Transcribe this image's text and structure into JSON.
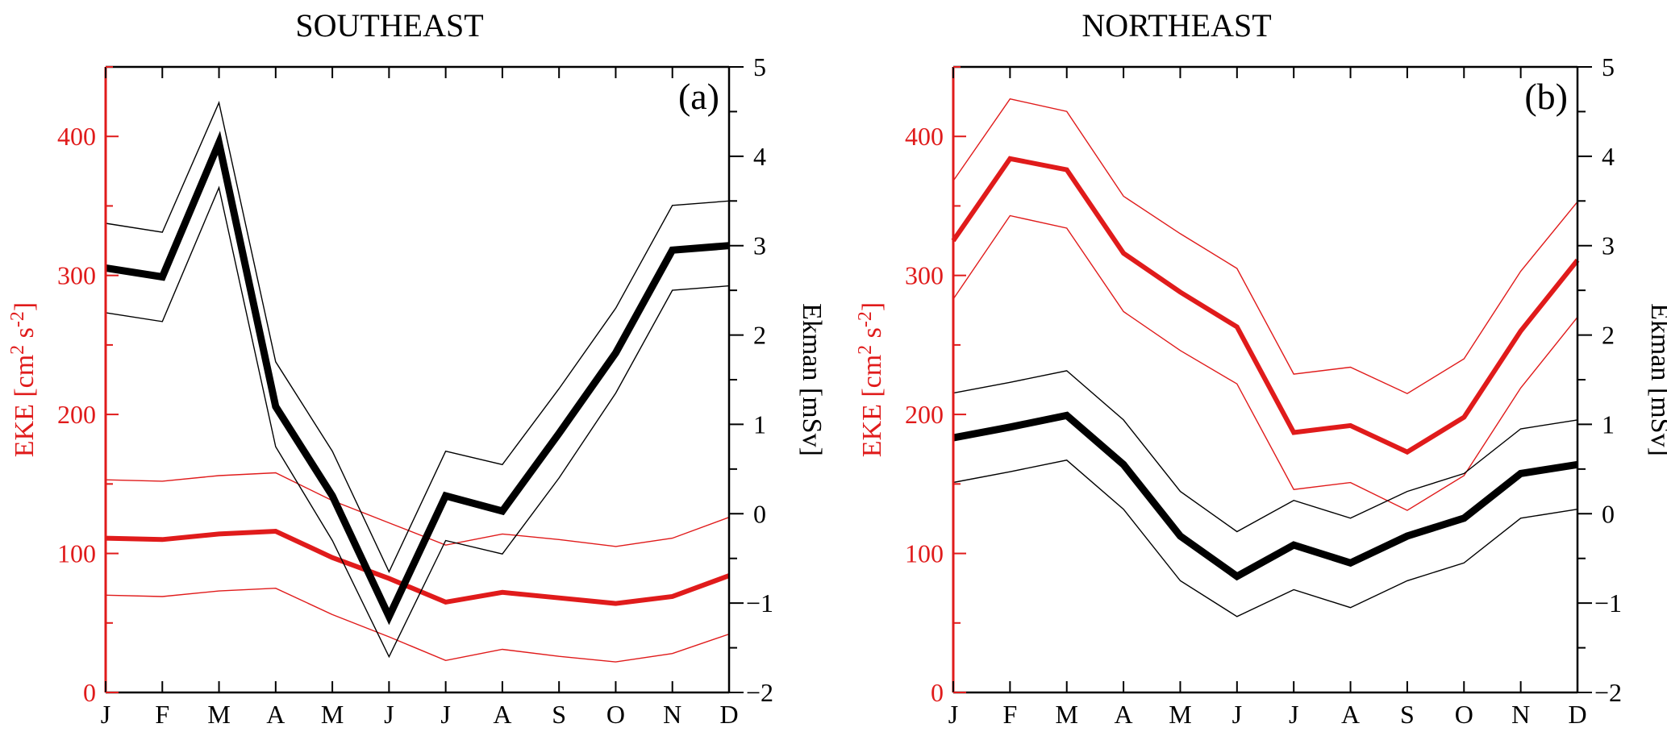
{
  "chart_data": [
    {
      "type": "line",
      "title": "SOUTHEAST",
      "panel_label": "(a)",
      "categories": [
        "J",
        "F",
        "M",
        "A",
        "M",
        "J",
        "J",
        "A",
        "S",
        "O",
        "N",
        "D"
      ],
      "ylabel_left": "EKE [cm",
      "ylabel_left_sup1": "2",
      "ylabel_left_mid": " s",
      "ylabel_left_sup2": "-2",
      "ylabel_left_end": "]",
      "ylabel_right": "Ekman [mSv]",
      "ylim_left": [
        0,
        450
      ],
      "yticks_left": [
        0,
        100,
        200,
        300,
        400
      ],
      "ylim_right": [
        -2,
        5
      ],
      "yticks_right": [
        -2,
        -1,
        0,
        1,
        2,
        3,
        4,
        5
      ],
      "series": [
        {
          "name": "EKE",
          "axis": "left",
          "color": "#e01b1b",
          "role": "mean",
          "values": [
            111,
            110,
            114,
            116,
            97,
            82,
            65,
            72,
            68,
            64,
            69,
            84
          ]
        },
        {
          "name": "EKE upper",
          "axis": "left",
          "color": "#e01b1b",
          "role": "bound",
          "values": [
            153,
            152,
            156,
            158,
            138,
            122,
            106,
            114,
            110,
            105,
            111,
            126
          ]
        },
        {
          "name": "EKE lower",
          "axis": "left",
          "color": "#e01b1b",
          "role": "bound",
          "values": [
            70,
            69,
            73,
            75,
            56,
            40,
            23,
            31,
            26,
            22,
            28,
            42
          ]
        },
        {
          "name": "Ekman",
          "axis": "right",
          "color": "#000000",
          "role": "mean",
          "values": [
            2.75,
            2.65,
            4.15,
            1.2,
            0.2,
            -1.15,
            0.2,
            0.03,
            0.9,
            1.8,
            2.95,
            3.0
          ]
        },
        {
          "name": "Ekman upper",
          "axis": "right",
          "color": "#000000",
          "role": "bound",
          "values": [
            3.25,
            3.15,
            4.6,
            1.7,
            0.7,
            -0.65,
            0.7,
            0.55,
            1.4,
            2.3,
            3.45,
            3.5
          ]
        },
        {
          "name": "Ekman lower",
          "axis": "right",
          "color": "#000000",
          "role": "bound",
          "values": [
            2.25,
            2.15,
            3.65,
            0.75,
            -0.3,
            -1.6,
            -0.3,
            -0.45,
            0.4,
            1.35,
            2.5,
            2.55
          ]
        }
      ]
    },
    {
      "type": "line",
      "title": "NORTHEAST",
      "panel_label": "(b)",
      "categories": [
        "J",
        "F",
        "M",
        "A",
        "M",
        "J",
        "J",
        "A",
        "S",
        "O",
        "N",
        "D"
      ],
      "ylabel_left": "EKE [cm",
      "ylabel_left_sup1": "2",
      "ylabel_left_mid": " s",
      "ylabel_left_sup2": "-2",
      "ylabel_left_end": "]",
      "ylabel_right": "Ekman [mSv]",
      "ylim_left": [
        0,
        450
      ],
      "yticks_left": [
        0,
        100,
        200,
        300,
        400
      ],
      "ylim_right": [
        -2,
        5
      ],
      "yticks_right": [
        -2,
        -1,
        0,
        1,
        2,
        3,
        4,
        5
      ],
      "series": [
        {
          "name": "EKE",
          "axis": "left",
          "color": "#e01b1b",
          "role": "mean",
          "values": [
            325,
            384,
            376,
            316,
            288,
            263,
            187,
            192,
            173,
            198,
            260,
            311
          ]
        },
        {
          "name": "EKE upper",
          "axis": "left",
          "color": "#e01b1b",
          "role": "bound",
          "values": [
            368,
            427,
            418,
            357,
            330,
            305,
            229,
            234,
            215,
            240,
            303,
            353
          ]
        },
        {
          "name": "EKE lower",
          "axis": "left",
          "color": "#e01b1b",
          "role": "bound",
          "values": [
            283,
            343,
            334,
            274,
            246,
            222,
            146,
            151,
            131,
            156,
            219,
            270
          ]
        },
        {
          "name": "Ekman",
          "axis": "right",
          "color": "#000000",
          "role": "mean",
          "values": [
            0.85,
            0.97,
            1.1,
            0.55,
            -0.25,
            -0.7,
            -0.35,
            -0.55,
            -0.25,
            -0.05,
            0.45,
            0.55
          ]
        },
        {
          "name": "Ekman upper",
          "axis": "right",
          "color": "#000000",
          "role": "bound",
          "values": [
            1.35,
            1.47,
            1.6,
            1.05,
            0.25,
            -0.2,
            0.15,
            -0.05,
            0.25,
            0.45,
            0.95,
            1.05
          ]
        },
        {
          "name": "Ekman lower",
          "axis": "right",
          "color": "#000000",
          "role": "bound",
          "values": [
            0.35,
            0.47,
            0.6,
            0.05,
            -0.75,
            -1.15,
            -0.85,
            -1.05,
            -0.75,
            -0.55,
            -0.05,
            0.05
          ]
        }
      ]
    }
  ],
  "colors": {
    "eke": "#e01b1b",
    "ekman": "#000000"
  }
}
